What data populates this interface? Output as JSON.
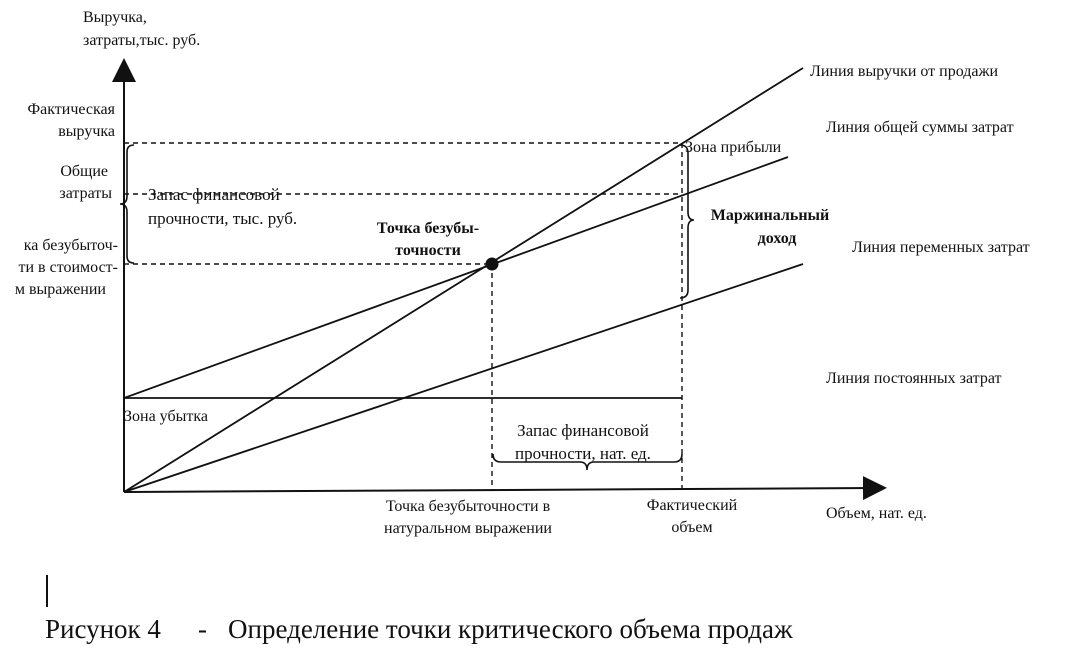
{
  "axes": {
    "y_label_line1": "Выручка,",
    "y_label_line2": "затраты,тыс. руб.",
    "x_label": "Объем, нат. ед."
  },
  "y_ticks": {
    "actual_revenue_line1": "Фактическая",
    "actual_revenue_line2": "выручка",
    "total_costs_line1": "Общие",
    "total_costs_line2": "затраты",
    "breakeven_value_line1": "ка  безубыточ-",
    "breakeven_value_line2": "ти в стоимост-",
    "breakeven_value_line3": "м выражении"
  },
  "x_ticks": {
    "breakeven_volume_line1": "Точка  безубыточности в",
    "breakeven_volume_line2": "натуральном выражении",
    "actual_volume_line1": "Фактический",
    "actual_volume_line2": "объем"
  },
  "lines": {
    "revenue": "Линия выручки от продажи",
    "total_costs": "Линия общей суммы затрат",
    "variable_costs": "Линия переменных затрат",
    "fixed_costs": "Линия постоянных затрат"
  },
  "annotations": {
    "breakeven_point_line1": "Точка безубы-",
    "breakeven_point_line2": "точности",
    "profit_zone": "Зона прибыли",
    "loss_zone": "Зона убытка",
    "marginal_income_line1": "Маржинальный",
    "marginal_income_line2": "доход",
    "safety_margin_value_line1": "Запас финансовой",
    "safety_margin_value_line2": "прочности, тыс. руб.",
    "safety_margin_units_line1": "Запас финансовой",
    "safety_margin_units_line2": "прочности, нат. ед."
  },
  "caption": {
    "number": "Рисунок 4",
    "dash": "-",
    "text": "Определение точки критического объема продаж"
  }
}
